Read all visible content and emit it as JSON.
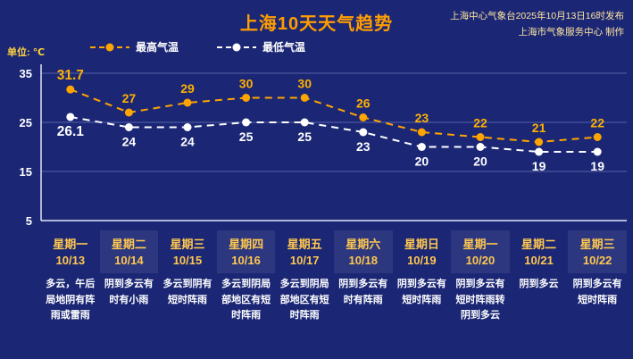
{
  "title": "上海10天天气趋势",
  "source": {
    "line1": "上海中心气象台2025年10月13日16时发布",
    "line2": "上海市气象服务中心 制作"
  },
  "unit_label": "单位: ℃",
  "legend": {
    "max_label": "最高气温",
    "min_label": "最低气温"
  },
  "colors": {
    "background": "#1b2775",
    "max_series": "#ffa400",
    "max_text": "#ffb000",
    "min_series": "#ffffff",
    "min_text": "#ffffff",
    "day_label": "#ffc84f"
  },
  "chart_data": {
    "type": "line",
    "title": "上海10天天气趋势",
    "x": [
      "10/13",
      "10/14",
      "10/15",
      "10/16",
      "10/17",
      "10/18",
      "10/19",
      "10/20",
      "10/21",
      "10/22"
    ],
    "series": [
      {
        "name": "最高气温",
        "values": [
          31.7,
          27,
          29,
          30,
          30,
          26,
          23,
          22,
          21,
          22
        ],
        "color": "#ffa400"
      },
      {
        "name": "最低气温",
        "values": [
          26.1,
          24,
          24,
          25,
          25,
          23,
          20,
          20,
          19,
          19
        ],
        "color": "#ffffff"
      }
    ],
    "ylabel": "℃",
    "yticks": [
      35,
      25,
      15,
      5
    ],
    "ylim": [
      5,
      37
    ],
    "grid": true,
    "line_style": "dashed",
    "legend_position": "top-left"
  },
  "days": [
    {
      "weekday": "星期一",
      "date": "10/13",
      "desc": "多云，午后局地阴有阵雨或雷雨"
    },
    {
      "weekday": "星期二",
      "date": "10/14",
      "desc": "阴到多云有时有小雨"
    },
    {
      "weekday": "星期三",
      "date": "10/15",
      "desc": "多云到阴有短时阵雨"
    },
    {
      "weekday": "星期四",
      "date": "10/16",
      "desc": "多云到阴局部地区有短时阵雨"
    },
    {
      "weekday": "星期五",
      "date": "10/17",
      "desc": "多云到阴局部地区有短时阵雨"
    },
    {
      "weekday": "星期六",
      "date": "10/18",
      "desc": "阴到多云有时有阵雨"
    },
    {
      "weekday": "星期日",
      "date": "10/19",
      "desc": "阴到多云有短时阵雨"
    },
    {
      "weekday": "星期一",
      "date": "10/20",
      "desc": "阴到多云有短时阵雨转阴到多云"
    },
    {
      "weekday": "星期二",
      "date": "10/21",
      "desc": "阴到多云"
    },
    {
      "weekday": "星期三",
      "date": "10/22",
      "desc": "阴到多云有短时阵雨"
    }
  ]
}
